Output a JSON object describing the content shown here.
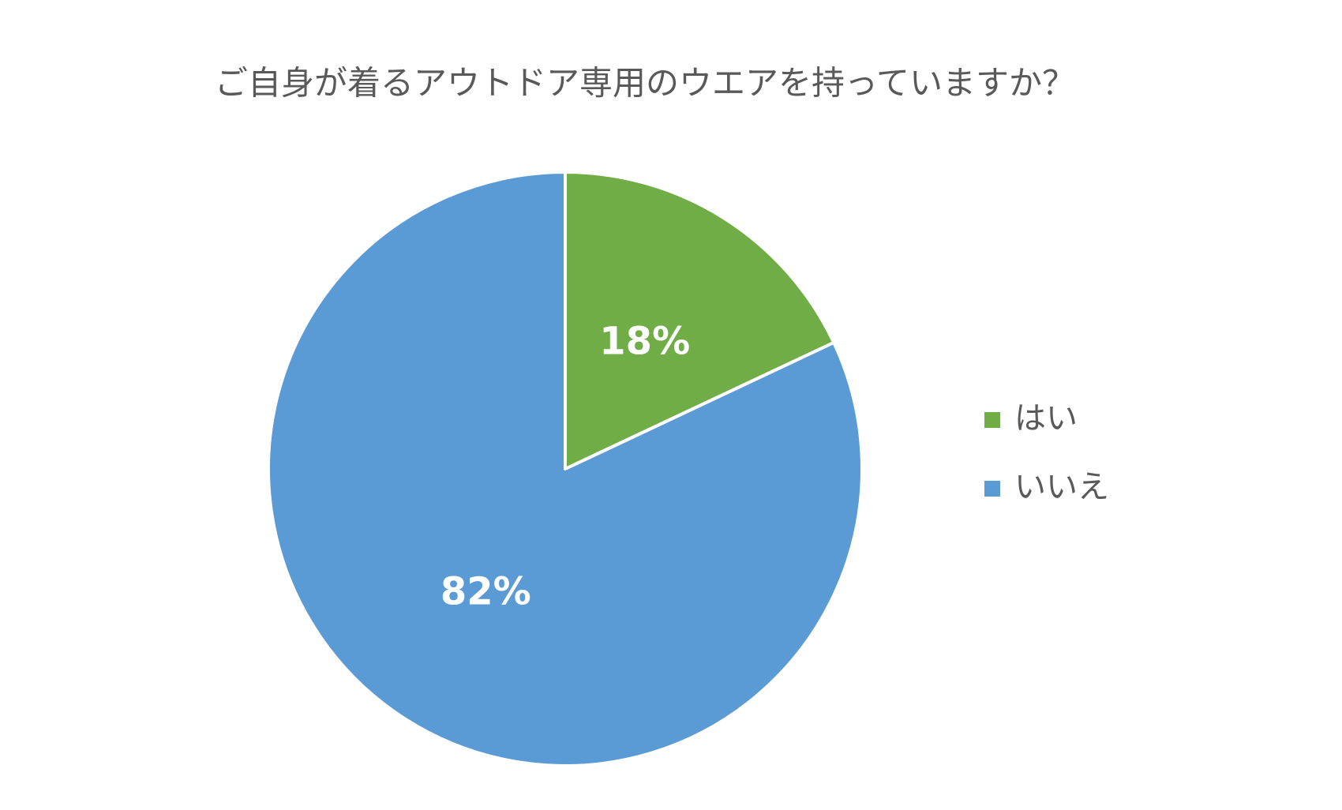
{
  "chart_data": {
    "type": "pie",
    "title": "ご自身が着るアウトドア専用のウエアを持っていますか？",
    "categories": [
      "はい",
      "いいえ"
    ],
    "values": [
      18,
      82
    ],
    "value_labels": [
      "18%",
      "82%"
    ],
    "colors": [
      "#70ad47",
      "#5b9bd5"
    ],
    "legend": "right"
  }
}
